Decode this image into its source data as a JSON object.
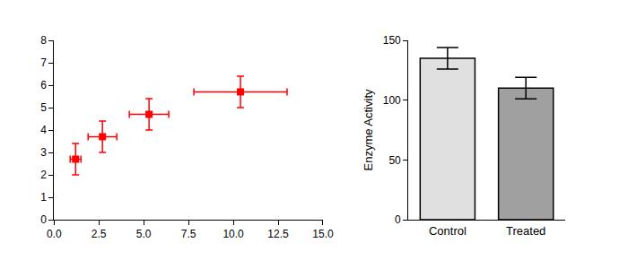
{
  "chart_data": [
    {
      "type": "scatter",
      "x": [
        1.2,
        2.7,
        5.3,
        10.4
      ],
      "values": [
        2.7,
        3.7,
        4.7,
        5.7
      ],
      "x_errors": [
        0.3,
        0.8,
        1.1,
        2.6
      ],
      "y_errors": [
        0.7,
        0.7,
        0.7,
        0.7
      ],
      "color": "#ff0000",
      "marker": "square",
      "grid": false,
      "xlim": [
        0,
        15
      ],
      "xticks": [
        {
          "value": 0,
          "label": "0.0"
        },
        2.5,
        {
          "value": 5,
          "label": "5.0"
        },
        7.5,
        {
          "value": 10,
          "label": "10.0"
        },
        12.5,
        {
          "value": 15,
          "label": "15.0"
        }
      ],
      "ylim": [
        0,
        8
      ],
      "yticks": [
        0,
        1,
        2,
        3,
        4,
        5,
        6,
        7,
        8
      ]
    },
    {
      "type": "bar",
      "categories": [
        "Control",
        "Treated"
      ],
      "values": [
        135,
        110
      ],
      "errors": [
        9,
        9
      ],
      "colors": [
        "#e0e0e0",
        "#a0a0a0"
      ],
      "y_label": "Enzyme Activity",
      "grid": false,
      "ylim": [
        0,
        150
      ],
      "yticks": [
        0,
        50,
        100,
        150
      ]
    }
  ]
}
